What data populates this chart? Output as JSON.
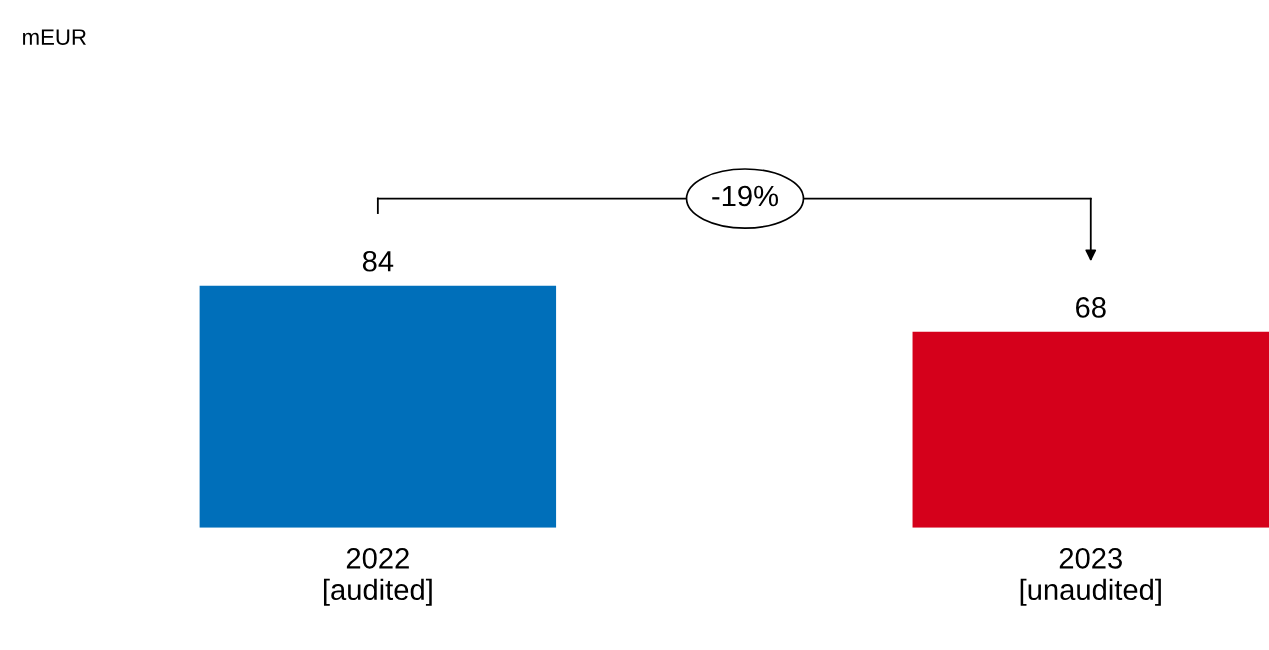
{
  "chart_data": {
    "type": "bar",
    "categories": [
      "2022\n[audited]",
      "2023\n[unaudited]"
    ],
    "values": [
      84,
      68
    ],
    "colors": [
      "#006fba",
      "#d5001b"
    ],
    "data_labels": true,
    "tick_labels": "x",
    "grid": false,
    "annotations": [
      "mEUR",
      "-19%"
    ]
  }
}
